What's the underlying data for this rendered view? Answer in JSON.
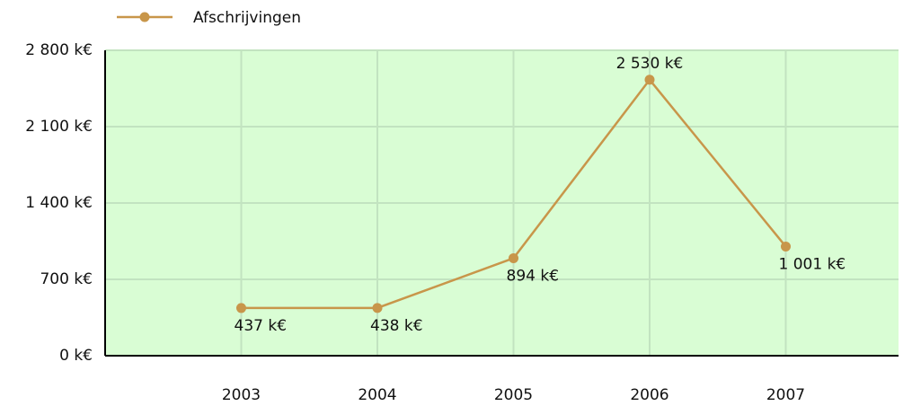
{
  "chart_data": {
    "type": "line",
    "categories": [
      "2003",
      "2004",
      "2005",
      "2006",
      "2007"
    ],
    "series": [
      {
        "name": "Afschrijvingen",
        "color": "#c8964a",
        "values": [
          437,
          438,
          894,
          2530,
          1001
        ],
        "value_labels": [
          "437 k€",
          "438 k€",
          "894 k€",
          "2 530 k€",
          "1 001 k€"
        ]
      }
    ],
    "ylim": [
      0,
      2800
    ],
    "yticks": [
      {
        "value": 0,
        "label": "0 k€"
      },
      {
        "value": 700,
        "label": "700 k€"
      },
      {
        "value": 1400,
        "label": "1 400 k€"
      },
      {
        "value": 2100,
        "label": "2 100 k€"
      },
      {
        "value": 2800,
        "label": "2 800 k€"
      }
    ],
    "grid": true,
    "legend": "top-left",
    "background": "#d9fdd4"
  }
}
